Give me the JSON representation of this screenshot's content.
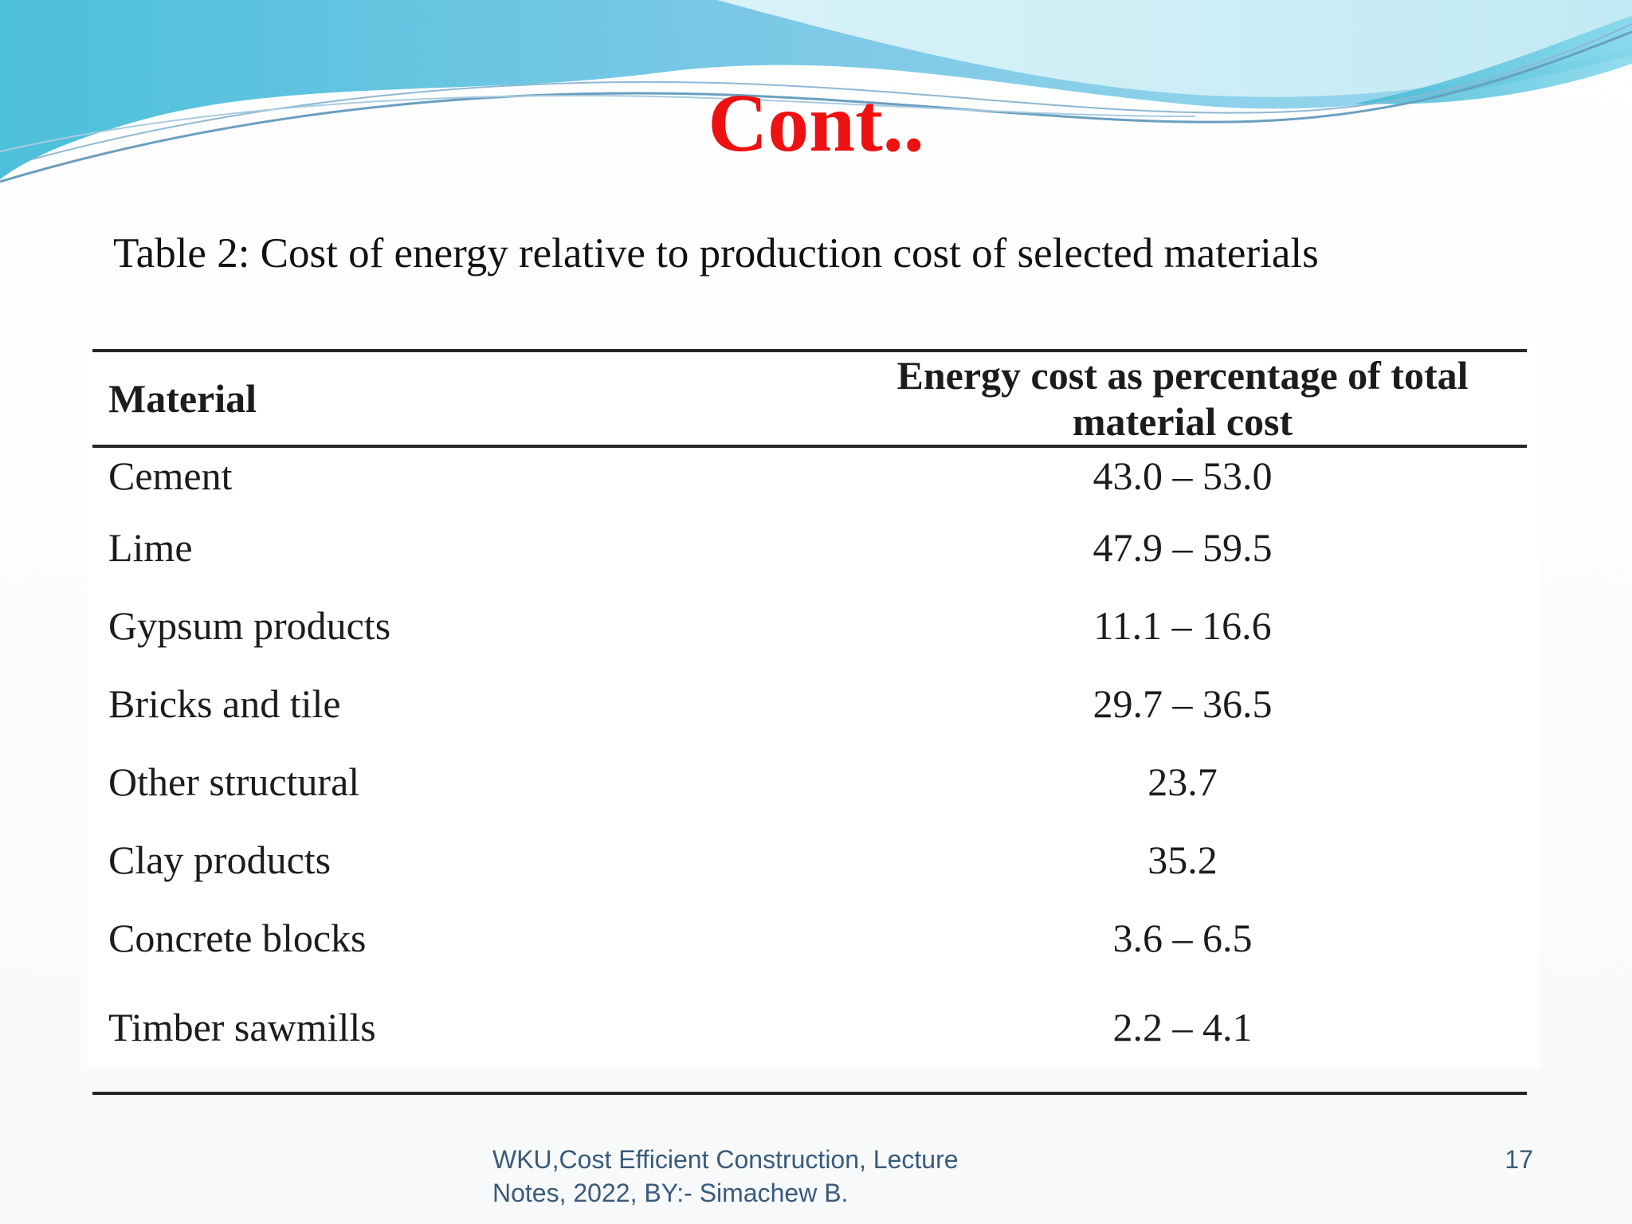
{
  "slide": {
    "title": "Cont..",
    "caption": "Table 2: Cost of energy relative to production cost of selected materials"
  },
  "table": {
    "headers": {
      "material": "Material",
      "energy": "Energy cost as percentage of total material cost"
    },
    "rows": [
      {
        "material": "Cement",
        "energy": "43.0 – 53.0"
      },
      {
        "material": "Lime",
        "energy": "47.9 – 59.5"
      },
      {
        "material": "Gypsum products",
        "energy": "11.1 – 16.6"
      },
      {
        "material": "Bricks and tile",
        "energy": "29.7 – 36.5"
      },
      {
        "material": "Other structural",
        "energy": "23.7"
      },
      {
        "material": "Clay products",
        "energy": "35.2"
      },
      {
        "material": "Concrete blocks",
        "energy": "3.6 – 6.5"
      },
      {
        "material": "Timber sawmills",
        "energy": "2.2 – 4.1"
      }
    ]
  },
  "footer": {
    "line1": "WKU,Cost Efficient Construction, Lecture",
    "line2": "Notes, 2022, BY:-  Simachew B.",
    "page_number": "17"
  },
  "colors": {
    "title": "#ee1111",
    "footer_text": "#3a5a7c",
    "wave_primary": "#5fc3df",
    "wave_light": "#bfe9f3"
  }
}
